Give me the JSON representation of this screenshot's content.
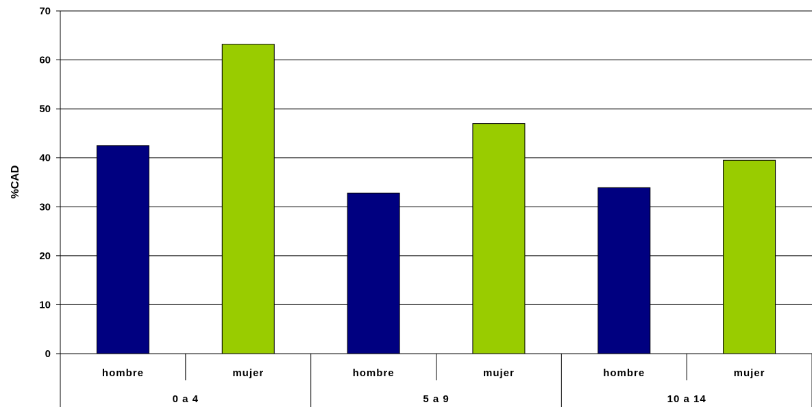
{
  "chart_data": {
    "type": "bar",
    "ylabel": "%CAD",
    "ylim": [
      0,
      70
    ],
    "yticks": [
      0,
      10,
      20,
      30,
      40,
      50,
      60,
      70
    ],
    "grid": true,
    "groups": [
      "0 a 4",
      "5 a 9",
      "10 a 14"
    ],
    "categories": [
      "hombre",
      "mujer",
      "hombre",
      "mujer",
      "hombre",
      "mujer"
    ],
    "values": [
      42.5,
      63.2,
      32.8,
      47.0,
      33.9,
      39.5
    ],
    "colors": {
      "hombre": "#000080",
      "mujer": "#99cc00"
    }
  }
}
